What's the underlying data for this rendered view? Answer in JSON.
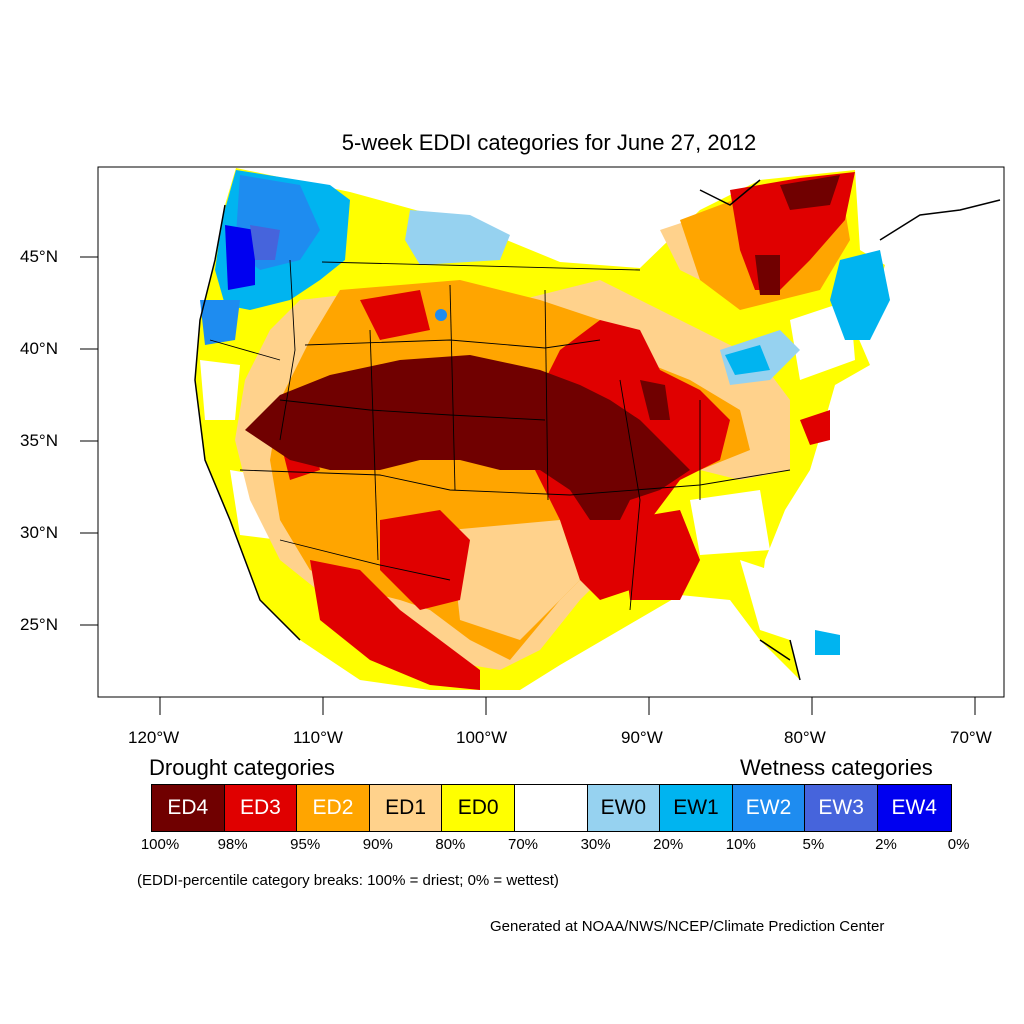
{
  "title": "5-week EDDI categories for June 27, 2012",
  "lat_labels": [
    "45°N",
    "40°N",
    "35°N",
    "30°N",
    "25°N"
  ],
  "lon_labels": [
    "120°W",
    "110°W",
    "100°W",
    "90°W",
    "80°W",
    "70°W"
  ],
  "legend": {
    "drought_heading": "Drought categories",
    "wetness_heading": "Wetness categories",
    "categories": [
      {
        "label": "ED4",
        "color": "#700000",
        "text_color": "#ffffff"
      },
      {
        "label": "ED3",
        "color": "#e00000",
        "text_color": "#ffffff"
      },
      {
        "label": "ED2",
        "color": "#ffa500",
        "text_color": "#ffffff"
      },
      {
        "label": "ED1",
        "color": "#ffd28c",
        "text_color": "#000000"
      },
      {
        "label": "ED0",
        "color": "#ffff00",
        "text_color": "#000000"
      },
      {
        "label": "",
        "color": "#ffffff",
        "text_color": "#000000"
      },
      {
        "label": "EW0",
        "color": "#96d2f0",
        "text_color": "#000000"
      },
      {
        "label": "EW1",
        "color": "#00b4f0",
        "text_color": "#000000"
      },
      {
        "label": "EW2",
        "color": "#1e8cf0",
        "text_color": "#ffffff"
      },
      {
        "label": "EW3",
        "color": "#4664dc",
        "text_color": "#ffffff"
      },
      {
        "label": "EW4",
        "color": "#0000f0",
        "text_color": "#ffffff"
      }
    ],
    "breaks": [
      "100%",
      "98%",
      "95%",
      "90%",
      "80%",
      "70%",
      "30%",
      "20%",
      "10%",
      "5%",
      "2%",
      "0%"
    ]
  },
  "note": "(EDDI-percentile category breaks: 100% = driest; 0% = wettest)",
  "credit": "Generated at NOAA/NWS/NCEP/Climate Prediction Center"
}
